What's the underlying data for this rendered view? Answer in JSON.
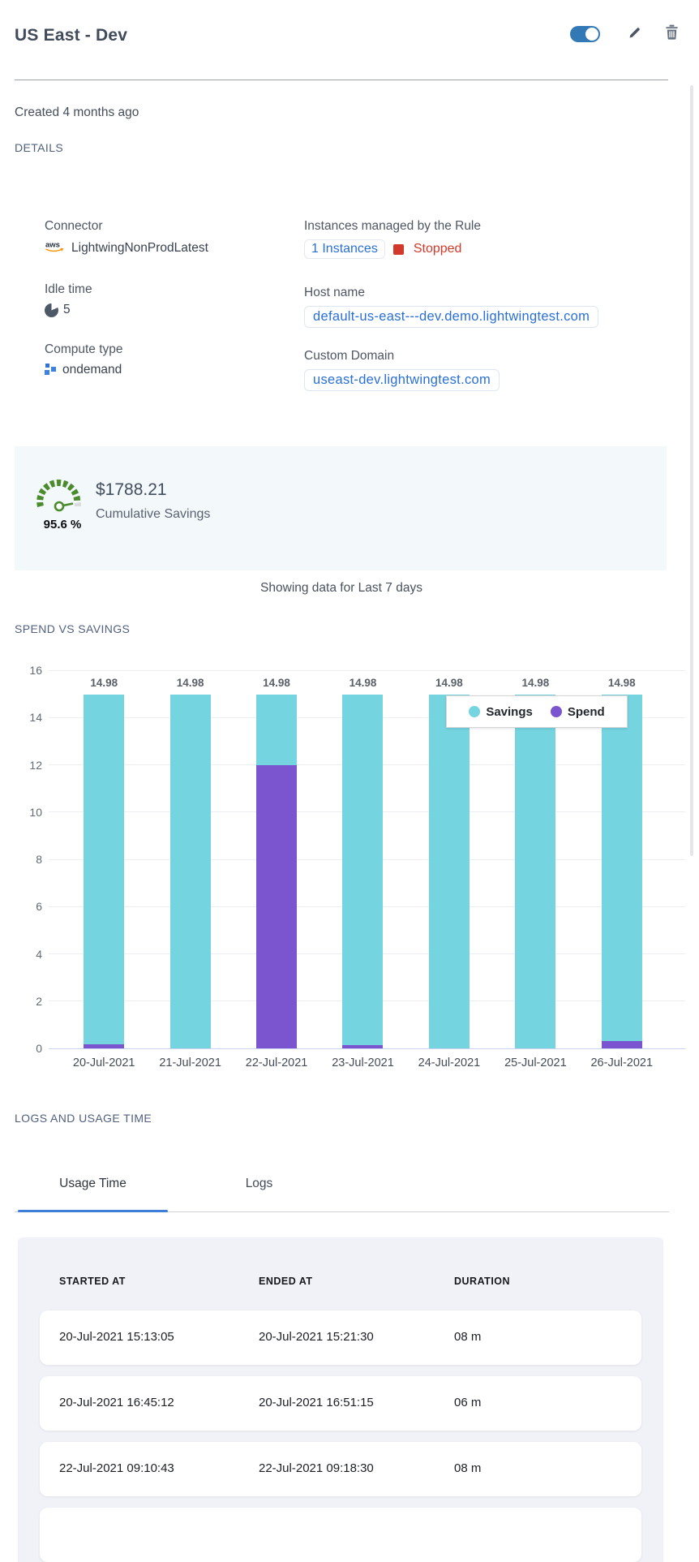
{
  "header": {
    "title": "US East - Dev",
    "toggle": "on"
  },
  "created_text": "Created 4 months ago",
  "details": {
    "heading": "DETAILS",
    "connector": {
      "label": "Connector",
      "value": "LightwingNonProdLatest",
      "icon": "aws-icon"
    },
    "instances": {
      "label": "Instances managed by the Rule",
      "link": "1 Instances",
      "status": "Stopped",
      "status_color": "#d3392b"
    },
    "idle_time": {
      "label": "Idle time",
      "value": "5",
      "icon": "clock-pie-icon"
    },
    "host_name": {
      "label": "Host name",
      "value": "default-us-east---dev.demo.lightwingtest.com"
    },
    "compute_type": {
      "label": "Compute type",
      "value": "ondemand",
      "icon": "compute-squares-icon"
    },
    "custom_domain": {
      "label": "Custom Domain",
      "value": "useast-dev.lightwingtest.com"
    }
  },
  "savings": {
    "percent": "95.6 %",
    "amount": "$1788.21",
    "caption": "Cumulative Savings"
  },
  "period_note": "Showing data for Last 7 days",
  "chart_section": {
    "heading": "SPEND VS SAVINGS"
  },
  "chart_data": {
    "type": "bar",
    "stacked": true,
    "title": "SPEND VS SAVINGS",
    "categories": [
      "20-Jul-2021",
      "21-Jul-2021",
      "22-Jul-2021",
      "23-Jul-2021",
      "24-Jul-2021",
      "25-Jul-2021",
      "26-Jul-2021"
    ],
    "series": [
      {
        "name": "Savings",
        "color": "#74d4e0",
        "values": [
          14.81,
          14.98,
          3.01,
          14.83,
          14.98,
          14.98,
          14.67
        ]
      },
      {
        "name": "Spend",
        "color": "#7b55cf",
        "values": [
          0.17,
          0,
          11.97,
          0.15,
          0,
          0,
          0.31
        ]
      }
    ],
    "bar_total_labels": [
      "14.98",
      "14.98",
      "14.98",
      "14.98",
      "14.98",
      "14.98",
      "14.98"
    ],
    "ylim": [
      0,
      16
    ],
    "yticks": [
      0,
      2,
      4,
      6,
      8,
      10,
      12,
      14,
      16
    ],
    "grid": true,
    "legend_position": "inset-top-right"
  },
  "logs_section": {
    "heading": "LOGS AND USAGE TIME",
    "tabs": [
      {
        "label": "Usage Time",
        "active": true
      },
      {
        "label": "Logs",
        "active": false
      }
    ]
  },
  "usage_table": {
    "columns": [
      "STARTED AT",
      "ENDED AT",
      "DURATION"
    ],
    "rows": [
      [
        "20-Jul-2021 15:13:05",
        "20-Jul-2021 15:21:30",
        "08 m"
      ],
      [
        "20-Jul-2021 16:45:12",
        "20-Jul-2021 16:51:15",
        "06 m"
      ],
      [
        "22-Jul-2021 09:10:43",
        "22-Jul-2021 09:18:30",
        "08 m"
      ]
    ]
  },
  "colors": {
    "accent_blue": "#3279b5",
    "link_blue": "#2a6fd4",
    "status_red": "#d3392b",
    "savings_teal": "#74d4e0",
    "spend_purple": "#7b55cf",
    "gauge_green": "#4a8b2c",
    "tab_underline": "#3c7ed8",
    "panel_bg": "#f3f8fb",
    "table_bg": "#f1f2f8"
  }
}
